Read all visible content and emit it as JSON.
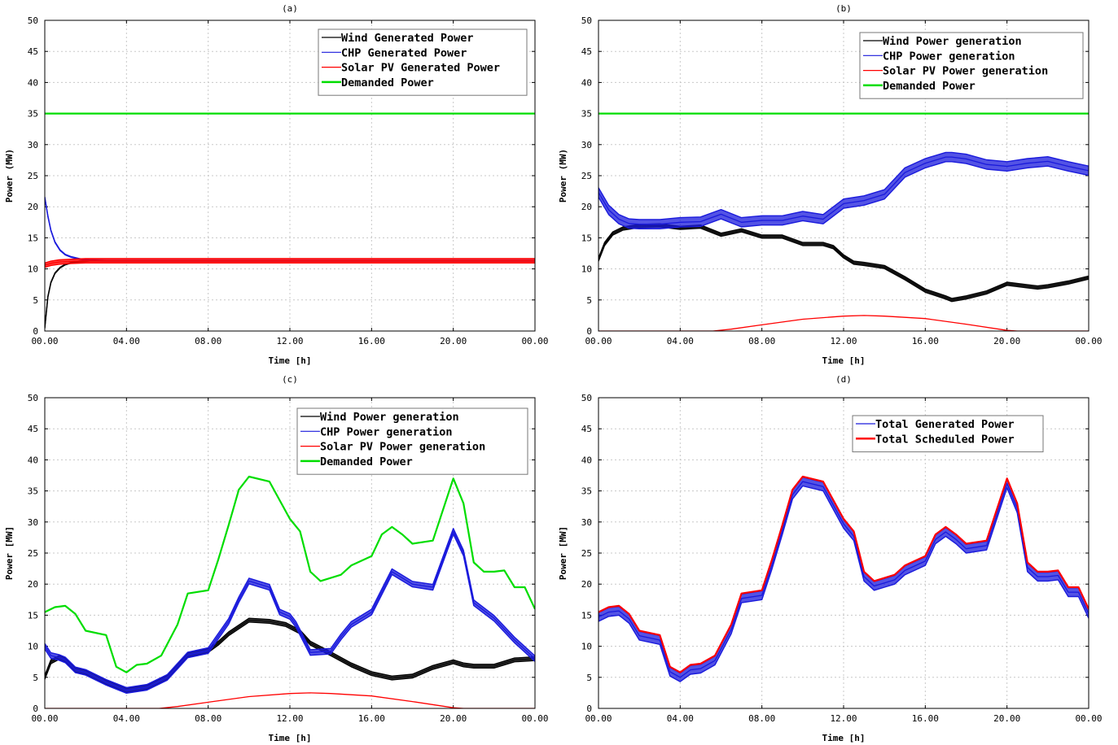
{
  "chart_data": [
    {
      "type": "line",
      "title": "(a)",
      "xlabel": "Time [h]",
      "ylabel": "Power (MW)",
      "xlim": [
        0,
        24
      ],
      "ylim": [
        0,
        50
      ],
      "yticks": [
        "0",
        "5",
        "10",
        "15",
        "20",
        "25",
        "30",
        "35",
        "40",
        "45",
        "50"
      ],
      "xticks": [
        "00.00",
        "04.00",
        "08.00",
        "12.00",
        "16.00",
        "20.00",
        "00.00"
      ],
      "grid": true,
      "legend": "top-right",
      "series": [
        {
          "name": "Wind Generated Power",
          "color": "#000000",
          "band": 0.12,
          "x": [
            0,
            0.15,
            0.3,
            0.5,
            0.75,
            1.0,
            1.3,
            1.7,
            2.2,
            3,
            24
          ],
          "y": [
            0.5,
            5.5,
            7.8,
            9.3,
            10.2,
            10.7,
            11.0,
            11.2,
            11.3,
            11.3,
            11.3
          ]
        },
        {
          "name": "CHP Generated Power",
          "color": "#1a1adc",
          "band": 0.12,
          "x": [
            0,
            0.15,
            0.3,
            0.5,
            0.75,
            1.0,
            1.3,
            1.7,
            2.2,
            3,
            24
          ],
          "y": [
            21.5,
            18.5,
            16.2,
            14.3,
            13.0,
            12.3,
            11.9,
            11.6,
            11.4,
            11.3,
            11.3
          ]
        },
        {
          "name": "Solar PV Generated Power",
          "color": "#ff0000",
          "band": 0.7,
          "x": [
            0,
            0.3,
            0.7,
            1.2,
            2,
            3,
            24
          ],
          "y": [
            10.6,
            10.9,
            11.1,
            11.2,
            11.3,
            11.3,
            11.3
          ]
        },
        {
          "name": "Demanded Power",
          "color": "#00dd00",
          "band": 0,
          "x": [
            0,
            24
          ],
          "y": [
            35,
            35
          ]
        }
      ]
    },
    {
      "type": "line",
      "title": "(b)",
      "xlabel": "Time [h]",
      "ylabel": "Power (MW)",
      "xlim": [
        0,
        24
      ],
      "ylim": [
        0,
        50
      ],
      "yticks": [
        "0",
        "5",
        "10",
        "15",
        "20",
        "25",
        "30",
        "35",
        "40",
        "45",
        "50"
      ],
      "xticks": [
        "00.00",
        "04.00",
        "08.00",
        "12.00",
        "16.00",
        "20.00",
        "00.00"
      ],
      "grid": true,
      "legend": "top-right",
      "series": [
        {
          "name": "Wind Power generation",
          "color": "#000000",
          "band": 0.5,
          "x": [
            0,
            0.3,
            0.7,
            1.2,
            2,
            3,
            4,
            5,
            6,
            7,
            8,
            9,
            10,
            11,
            11.5,
            12,
            12.5,
            13,
            14,
            15,
            16,
            17,
            17.3,
            18,
            19,
            20,
            21,
            21.5,
            22,
            23,
            24
          ],
          "y": [
            11.5,
            14,
            15.7,
            16.5,
            16.9,
            17.0,
            16.6,
            16.8,
            15.5,
            16.2,
            15.2,
            15.2,
            14.0,
            14.0,
            13.5,
            12.0,
            11.0,
            10.8,
            10.3,
            8.5,
            6.5,
            5.4,
            5.0,
            5.4,
            6.2,
            7.6,
            7.2,
            7.0,
            7.2,
            7.8,
            8.6
          ]
        },
        {
          "name": "CHP Power generation",
          "color": "#1a1adc",
          "band": 1.5,
          "x": [
            0,
            0.5,
            1,
            1.5,
            2,
            3,
            4,
            5,
            6,
            7,
            8,
            9,
            10,
            11,
            12,
            13,
            14,
            15,
            16,
            17,
            17.3,
            18,
            19,
            20,
            21,
            22,
            23,
            24
          ],
          "y": [
            22.3,
            19.5,
            18,
            17.3,
            17.2,
            17.2,
            17.5,
            17.6,
            18.8,
            17.5,
            17.8,
            17.8,
            18.5,
            18.0,
            20.5,
            21.0,
            22.0,
            25.5,
            27.0,
            28.0,
            28.0,
            27.7,
            26.8,
            26.5,
            27.0,
            27.3,
            26.5,
            25.8
          ]
        },
        {
          "name": "Solar PV Power generation",
          "color": "#ff0000",
          "band": 0,
          "x": [
            0,
            5.6,
            6.5,
            8,
            10,
            12,
            13,
            14,
            16,
            18,
            20,
            20.5,
            24
          ],
          "y": [
            0,
            0,
            0.3,
            1.0,
            1.9,
            2.4,
            2.5,
            2.4,
            2.0,
            1.1,
            0.1,
            0,
            0
          ]
        },
        {
          "name": "Demanded Power",
          "color": "#00dd00",
          "band": 0,
          "x": [
            0,
            24
          ],
          "y": [
            35,
            35
          ]
        }
      ]
    },
    {
      "type": "line",
      "title": "(c)",
      "xlabel": "Time [h]",
      "ylabel": "Power [MW]",
      "xlim": [
        0,
        24
      ],
      "ylim": [
        0,
        50
      ],
      "yticks": [
        "0",
        "5",
        "10",
        "15",
        "20",
        "25",
        "30",
        "35",
        "40",
        "45",
        "50"
      ],
      "xticks": [
        "00.00",
        "04.00",
        "08.00",
        "12.00",
        "16.00",
        "20.00",
        "00.00"
      ],
      "grid": true,
      "legend": "top-right",
      "series": [
        {
          "name": "Wind Power generation",
          "color": "#000000",
          "band": 0.6,
          "x": [
            0,
            0.3,
            0.7,
            1,
            1.5,
            2,
            3,
            4,
            5,
            6,
            7,
            8,
            8.5,
            9,
            10,
            11,
            11.8,
            12.5,
            13,
            14,
            15,
            16,
            17,
            18,
            19,
            20,
            20.5,
            21,
            22,
            23,
            24
          ],
          "y": [
            5,
            7.5,
            8.2,
            7.8,
            6.2,
            5.8,
            4.2,
            2.9,
            3.4,
            5.0,
            8.6,
            9.3,
            10.5,
            12.0,
            14.2,
            14.0,
            13.5,
            12.3,
            10.5,
            8.8,
            7.0,
            5.6,
            4.9,
            5.2,
            6.6,
            7.5,
            7.0,
            6.8,
            6.8,
            7.8,
            8.0
          ]
        },
        {
          "name": "CHP Power generation",
          "color": "#1a1adc",
          "band": 0.9,
          "x": [
            0,
            0.3,
            0.7,
            1,
            1.5,
            2,
            3,
            4,
            5,
            6,
            7,
            8,
            9,
            9.5,
            10,
            11,
            11.5,
            12,
            12.3,
            13,
            14,
            14.5,
            15,
            16,
            17,
            18,
            19,
            20,
            20.5,
            21,
            22,
            23,
            24
          ],
          "y": [
            10,
            8.5,
            8.2,
            7.8,
            6.2,
            5.8,
            4.2,
            2.9,
            3.4,
            5.0,
            8.6,
            9.3,
            14.0,
            17.5,
            20.5,
            19.5,
            15.5,
            14.8,
            13.5,
            9.0,
            9.2,
            11.5,
            13.5,
            15.5,
            22.0,
            20.0,
            19.5,
            28.5,
            25.0,
            17.0,
            14.5,
            11.0,
            8.0
          ]
        },
        {
          "name": "Solar PV Power generation",
          "color": "#ff0000",
          "band": 0,
          "x": [
            0,
            5.6,
            6.5,
            8,
            10,
            12,
            13,
            14,
            16,
            18,
            20,
            20.5,
            24
          ],
          "y": [
            0,
            0,
            0.3,
            1.0,
            1.9,
            2.4,
            2.5,
            2.4,
            2.0,
            1.1,
            0.1,
            0,
            0
          ]
        },
        {
          "name": "Demanded Power",
          "color": "#00dd00",
          "band": 0,
          "x": [
            0,
            0.5,
            1,
            1.5,
            2,
            3,
            3.5,
            4,
            4.5,
            5,
            5.7,
            6.5,
            7,
            8,
            8.5,
            9,
            9.5,
            10,
            11,
            12,
            12.5,
            13,
            13.5,
            14,
            14.5,
            15,
            16,
            16.5,
            17,
            17.5,
            18,
            19,
            20,
            20.5,
            21,
            21.5,
            22,
            22.5,
            23,
            23.5,
            24
          ],
          "y": [
            15.5,
            16.3,
            16.5,
            15.2,
            12.5,
            11.8,
            6.7,
            5.8,
            7.0,
            7.2,
            8.5,
            13.5,
            18.5,
            19.0,
            24.0,
            29.5,
            35.2,
            37.3,
            36.5,
            30.5,
            28.5,
            22.0,
            20.5,
            21.0,
            21.5,
            23.0,
            24.5,
            28.0,
            29.2,
            28.0,
            26.5,
            27.0,
            37.0,
            33.0,
            23.5,
            22.0,
            22.0,
            22.2,
            19.5,
            19.5,
            16.0
          ]
        }
      ]
    },
    {
      "type": "line",
      "title": "(d)",
      "xlabel": "Time [h]",
      "ylabel": "Power [MW]",
      "xlim": [
        0,
        24
      ],
      "ylim": [
        0,
        50
      ],
      "yticks": [
        "0",
        "5",
        "10",
        "15",
        "20",
        "25",
        "30",
        "35",
        "40",
        "45",
        "50"
      ],
      "xticks": [
        "00.00",
        "04.00",
        "08.00",
        "12.00",
        "16.00",
        "20.00",
        "00.00"
      ],
      "grid": true,
      "legend": "top-right",
      "series": [
        {
          "name": "Total Generated Power",
          "color": "#1a1adc",
          "band": 1.4,
          "offset": -0.8,
          "x": [
            0,
            0.5,
            1,
            1.5,
            2,
            3,
            3.5,
            4,
            4.5,
            5,
            5.7,
            6.5,
            7,
            8,
            8.5,
            9,
            9.5,
            10,
            11,
            12,
            12.5,
            13,
            13.5,
            14,
            14.5,
            15,
            16,
            16.5,
            17,
            17.5,
            18,
            19,
            20,
            20.5,
            21,
            21.5,
            22,
            22.5,
            23,
            23.5,
            24
          ],
          "y": [
            15.5,
            16.3,
            16.5,
            15.2,
            12.5,
            11.8,
            6.7,
            5.8,
            7.0,
            7.2,
            8.5,
            13.5,
            18.5,
            19.0,
            24.0,
            29.5,
            35.2,
            37.3,
            36.5,
            30.5,
            28.5,
            22.0,
            20.5,
            21.0,
            21.5,
            23.0,
            24.5,
            28.0,
            29.2,
            28.0,
            26.5,
            27.0,
            37.0,
            33.0,
            23.5,
            22.0,
            22.0,
            22.2,
            19.5,
            19.5,
            16.0
          ]
        },
        {
          "name": "Total Scheduled Power",
          "color": "#ff0000",
          "band": 0,
          "x": [
            0,
            0.5,
            1,
            1.5,
            2,
            3,
            3.5,
            4,
            4.5,
            5,
            5.7,
            6.5,
            7,
            8,
            8.5,
            9,
            9.5,
            10,
            11,
            12,
            12.5,
            13,
            13.5,
            14,
            14.5,
            15,
            16,
            16.5,
            17,
            17.5,
            18,
            19,
            20,
            20.5,
            21,
            21.5,
            22,
            22.5,
            23,
            23.5,
            24
          ],
          "y": [
            15.5,
            16.3,
            16.5,
            15.2,
            12.5,
            11.8,
            6.7,
            5.8,
            7.0,
            7.2,
            8.5,
            13.5,
            18.5,
            19.0,
            24.0,
            29.5,
            35.2,
            37.3,
            36.5,
            30.5,
            28.5,
            22.0,
            20.5,
            21.0,
            21.5,
            23.0,
            24.5,
            28.0,
            29.2,
            28.0,
            26.5,
            27.0,
            37.0,
            33.0,
            23.5,
            22.0,
            22.0,
            22.2,
            19.5,
            19.5,
            16.0
          ]
        }
      ]
    }
  ]
}
